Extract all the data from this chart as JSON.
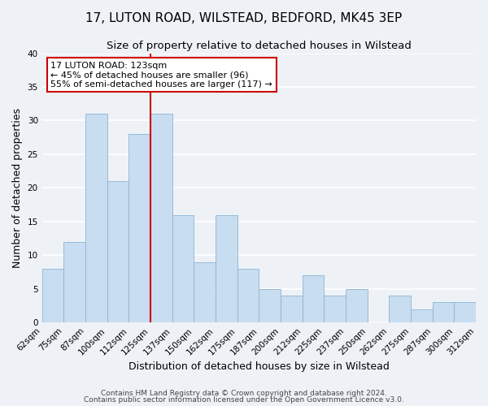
{
  "title": "17, LUTON ROAD, WILSTEAD, BEDFORD, MK45 3EP",
  "subtitle": "Size of property relative to detached houses in Wilstead",
  "xlabel": "Distribution of detached houses by size in Wilstead",
  "ylabel": "Number of detached properties",
  "bar_labels": [
    "62sqm",
    "75sqm",
    "87sqm",
    "100sqm",
    "112sqm",
    "125sqm",
    "137sqm",
    "150sqm",
    "162sqm",
    "175sqm",
    "187sqm",
    "200sqm",
    "212sqm",
    "225sqm",
    "237sqm",
    "250sqm",
    "262sqm",
    "275sqm",
    "287sqm",
    "300sqm",
    "312sqm"
  ],
  "bar_values": [
    8,
    12,
    31,
    21,
    28,
    31,
    16,
    9,
    16,
    8,
    5,
    4,
    7,
    4,
    5,
    0,
    4,
    2,
    3,
    3
  ],
  "bar_color": "#c9ddf0",
  "bar_edge_color": "#8ab4d4",
  "ylim": [
    0,
    40
  ],
  "yticks": [
    0,
    5,
    10,
    15,
    20,
    25,
    30,
    35,
    40
  ],
  "vline_color": "#cc0000",
  "annotation_title": "17 LUTON ROAD: 123sqm",
  "annotation_line1": "← 45% of detached houses are smaller (96)",
  "annotation_line2": "55% of semi-detached houses are larger (117) →",
  "annotation_box_color": "#ffffff",
  "annotation_box_edge": "#cc0000",
  "footer1": "Contains HM Land Registry data © Crown copyright and database right 2024.",
  "footer2": "Contains public sector information licensed under the Open Government Licence v3.0.",
  "background_color": "#eef2f7",
  "grid_color": "#ffffff",
  "title_fontsize": 11,
  "subtitle_fontsize": 9.5,
  "axis_label_fontsize": 9,
  "tick_fontsize": 7.5,
  "footer_fontsize": 6.5
}
